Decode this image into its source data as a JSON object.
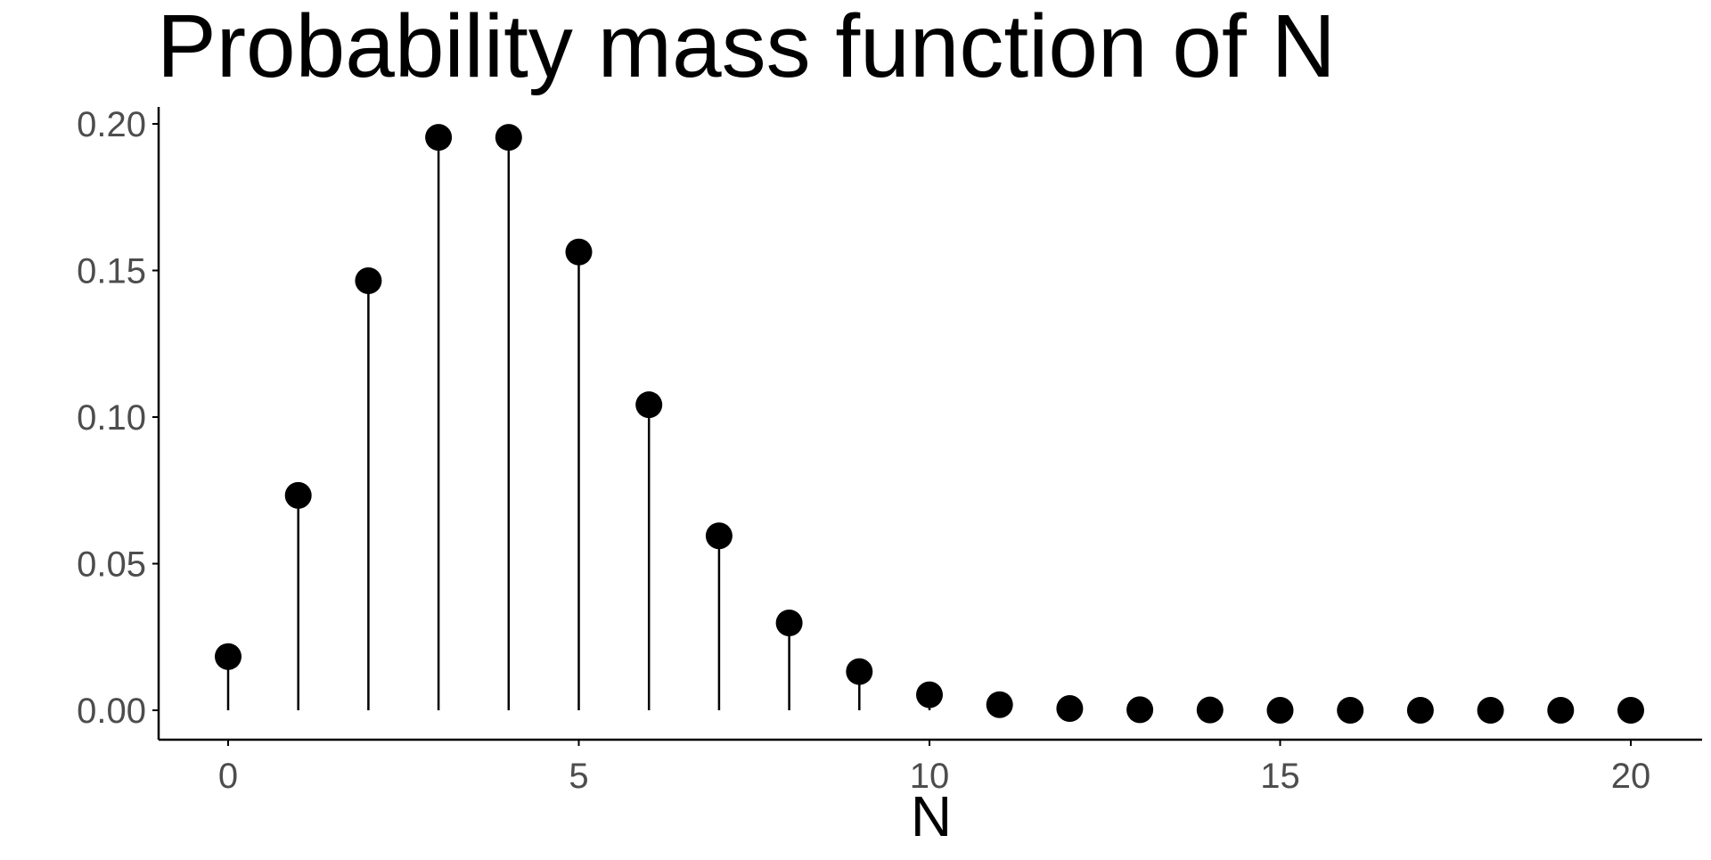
{
  "chart_data": {
    "type": "scatter",
    "style": "lollipop",
    "title": "Probability mass function of N",
    "xlabel": "N",
    "ylabel": "",
    "x": [
      0,
      1,
      2,
      3,
      4,
      5,
      6,
      7,
      8,
      9,
      10,
      11,
      12,
      13,
      14,
      15,
      16,
      17,
      18,
      19,
      20
    ],
    "values": [
      0.0183,
      0.0733,
      0.1465,
      0.1954,
      0.1954,
      0.1563,
      0.1042,
      0.0595,
      0.0298,
      0.0132,
      0.0053,
      0.0019,
      0.0006,
      0.0002,
      0.0001,
      0.0,
      0.0,
      0.0,
      0.0,
      0.0,
      0.0
    ],
    "xlim": [
      -1,
      21
    ],
    "ylim": [
      -0.01,
      0.205
    ],
    "xticks": [
      0,
      5,
      10,
      15,
      20
    ],
    "xtick_labels": [
      "0",
      "5",
      "10",
      "15",
      "20"
    ],
    "yticks": [
      0.0,
      0.05,
      0.1,
      0.15,
      0.2
    ],
    "ytick_labels": [
      "0.00",
      "0.05",
      "0.10",
      "0.15",
      "0.20"
    ],
    "grid": false,
    "legend": "none",
    "colors": {
      "marker": "#000000",
      "axis": "#000000",
      "tick_text": "#4d4d4d"
    }
  }
}
